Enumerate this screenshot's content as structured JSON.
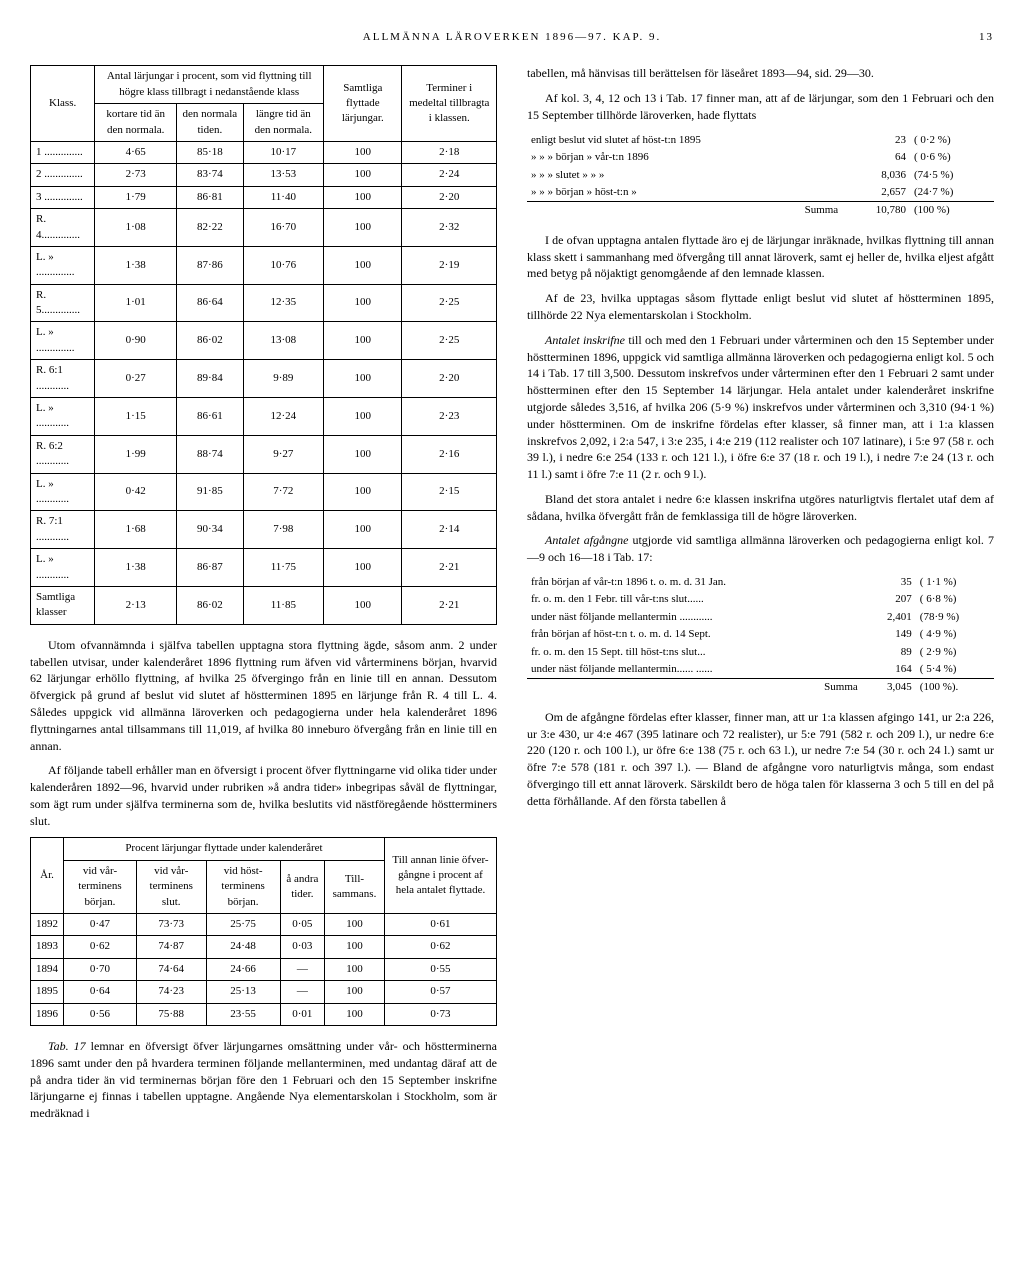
{
  "header": {
    "title": "ALLMÄNNA LÄROVERKEN 1896—97. KAP. 9.",
    "page_number": "13"
  },
  "table1": {
    "col_headers": {
      "c0": "Klass.",
      "c1_group": "Antal lärjungar i procent, som vid flyttning till högre klass tillbragt i nedanstående klass",
      "c1a": "kortare tid än den normala.",
      "c1b": "den normala tiden.",
      "c1c": "längre tid än den normala.",
      "c2": "Samtliga flyttade lärjungar.",
      "c3": "Terminer i medeltal tillbragta i klassen."
    },
    "rows": [
      {
        "k": "1 ..............",
        "a": "4·65",
        "b": "85·18",
        "c": "10·17",
        "d": "100",
        "e": "2·18"
      },
      {
        "k": "2 ..............",
        "a": "2·73",
        "b": "83·74",
        "c": "13·53",
        "d": "100",
        "e": "2·24"
      },
      {
        "k": "3 ..............",
        "a": "1·79",
        "b": "86·81",
        "c": "11·40",
        "d": "100",
        "e": "2·20"
      },
      {
        "k": "R. 4..............",
        "a": "1·08",
        "b": "82·22",
        "c": "16·70",
        "d": "100",
        "e": "2·32"
      },
      {
        "k": "L. » ..............",
        "a": "1·38",
        "b": "87·86",
        "c": "10·76",
        "d": "100",
        "e": "2·19"
      },
      {
        "k": "R. 5..............",
        "a": "1·01",
        "b": "86·64",
        "c": "12·35",
        "d": "100",
        "e": "2·25"
      },
      {
        "k": "L. » ..............",
        "a": "0·90",
        "b": "86·02",
        "c": "13·08",
        "d": "100",
        "e": "2·25"
      },
      {
        "k": "R. 6:1 ............",
        "a": "0·27",
        "b": "89·84",
        "c": "9·89",
        "d": "100",
        "e": "2·20"
      },
      {
        "k": "L. » ............",
        "a": "1·15",
        "b": "86·61",
        "c": "12·24",
        "d": "100",
        "e": "2·23"
      },
      {
        "k": "R. 6:2 ............",
        "a": "1·99",
        "b": "88·74",
        "c": "9·27",
        "d": "100",
        "e": "2·16"
      },
      {
        "k": "L. » ............",
        "a": "0·42",
        "b": "91·85",
        "c": "7·72",
        "d": "100",
        "e": "2·15"
      },
      {
        "k": "R. 7:1 ............",
        "a": "1·68",
        "b": "90·34",
        "c": "7·98",
        "d": "100",
        "e": "2·14"
      },
      {
        "k": "L. » ............",
        "a": "1·38",
        "b": "86·87",
        "c": "11·75",
        "d": "100",
        "e": "2·21"
      },
      {
        "k": "Samtliga klasser",
        "a": "2·13",
        "b": "86·02",
        "c": "11·85",
        "d": "100",
        "e": "2·21"
      }
    ]
  },
  "para1": "Utom ofvannämnda i själfva tabellen upptagna stora flyttning ägde, såsom anm. 2 under tabellen utvisar, under kalenderåret 1896 flyttning rum äfven vid vårterminens början, hvarvid 62 lärjungar erhöllo flyttning, af hvilka 25 öfvergingo från en linie till en annan. Dessutom öfvergick på grund af beslut vid slutet af höstterminen 1895 en lärjunge från R. 4 till L. 4. Således uppgick vid allmänna läroverken och pedagogierna under hela kalenderåret 1896 flyttningarnes antal tillsammans till 11,019, af hvilka 80 inneburo öfvergång från en linie till en annan.",
  "para2": "Af följande tabell erhåller man en öfversigt i procent öfver flyttningarne vid olika tider under kalenderåren 1892—96, hvarvid under rubriken »å andra tider» inbegripas såväl de flyttningar, som ägt rum under själfva terminerna som de, hvilka beslutits vid nästföregående höstterminers slut.",
  "table2": {
    "col_headers": {
      "c0": "År.",
      "c1_group": "Procent lärjungar flyttade under kalenderåret",
      "c1a": "vid vår-terminens början.",
      "c1b": "vid vår-terminens slut.",
      "c1c": "vid höst-terminens början.",
      "c1d": "å andra tider.",
      "c1e": "Till-sammans.",
      "c2": "Till annan linie öfver-gångne i procent af hela antalet flyttade."
    },
    "rows": [
      {
        "y": "1892",
        "a": "0·47",
        "b": "73·73",
        "c": "25·75",
        "d": "0·05",
        "e": "100",
        "f": "0·61"
      },
      {
        "y": "1893",
        "a": "0·62",
        "b": "74·87",
        "c": "24·48",
        "d": "0·03",
        "e": "100",
        "f": "0·62"
      },
      {
        "y": "1894",
        "a": "0·70",
        "b": "74·64",
        "c": "24·66",
        "d": "—",
        "e": "100",
        "f": "0·55"
      },
      {
        "y": "1895",
        "a": "0·64",
        "b": "74·23",
        "c": "25·13",
        "d": "—",
        "e": "100",
        "f": "0·57"
      },
      {
        "y": "1896",
        "a": "0·56",
        "b": "75·88",
        "c": "23·55",
        "d": "0·01",
        "e": "100",
        "f": "0·73"
      }
    ]
  },
  "para3": "Tab. 17 lemnar en öfversigt öfver lärjungarnes omsättning under vår- och höstterminerna 1896 samt under den på hvardera terminen följande mellanterminen, med undantag däraf att de på andra tider än vid terminernas början före den 1 Februari och den 15 September inskrifne lärjungarne ej finnas i tabellen upptagne. Angående Nya elementarskolan i Stockholm, som är medräknad i",
  "para4": "tabellen, må hänvisas till berättelsen för läseåret 1893—94, sid. 29—30.",
  "para5": "Af kol. 3, 4, 12 och 13 i Tab. 17 finner man, att af de lärjungar, som den 1 Februari och den 15 September tillhörde läroverken, hade flyttats",
  "table3": {
    "rows": [
      {
        "a": "enligt beslut vid slutet af höst-t:n 1895",
        "b": "23",
        "c": "( 0·2 %)"
      },
      {
        "a": "» » » början » vår-t:n 1896",
        "b": "64",
        "c": "( 0·6 %)"
      },
      {
        "a": "» » » slutet » » »",
        "b": "8,036",
        "c": "(74·5 %)"
      },
      {
        "a": "» » » början » höst-t:n »",
        "b": "2,657",
        "c": "(24·7 %)"
      }
    ],
    "sum": {
      "a": "Summa",
      "b": "10,780",
      "c": "(100 %)"
    }
  },
  "para6": "I de ofvan upptagna antalen flyttade äro ej de lärjungar inräknade, hvilkas flyttning till annan klass skett i sammanhang med öfvergång till annat läroverk, samt ej heller de, hvilka eljest afgått med betyg på nöjaktigt genomgående af den lemnade klassen.",
  "para7": "Af de 23, hvilka upptagas såsom flyttade enligt beslut vid slutet af höstterminen 1895, tillhörde 22 Nya elementarskolan i Stockholm.",
  "para8": "Antalet inskrifne till och med den 1 Februari under vårterminen och den 15 September under höstterminen 1896, uppgick vid samtliga allmänna läroverken och pedagogierna enligt kol. 5 och 14 i Tab. 17 till 3,500. Dessutom inskrefvos under vårterminen efter den 1 Februari 2 samt under höstterminen efter den 15 September 14 lärjungar. Hela antalet under kalenderåret inskrifne utgjorde således 3,516, af hvilka 206 (5·9 %) inskrefvos under vårterminen och 3,310 (94·1 %) under höstterminen. Om de inskrifne fördelas efter klasser, så finner man, att i 1:a klassen inskrefvos 2,092, i 2:a 547, i 3:e 235, i 4:e 219 (112 realister och 107 latinare), i 5:e 97 (58 r. och 39 l.), i nedre 6:e 254 (133 r. och 121 l.), i öfre 6:e 37 (18 r. och 19 l.), i nedre 7:e 24 (13 r. och 11 l.) samt i öfre 7:e 11 (2 r. och 9 l.).",
  "para9": "Bland det stora antalet i nedre 6:e klassen inskrifna utgöres naturligtvis flertalet utaf dem af sådana, hvilka öfvergått från de femklassiga till de högre läroverken.",
  "para10": "Antalet afgångne utgjorde vid samtliga allmänna läroverken och pedagogierna enligt kol. 7—9 och 16—18 i Tab. 17:",
  "table4": {
    "rows": [
      {
        "a": "från början af vår-t:n 1896 t. o. m. d. 31 Jan.",
        "b": "35",
        "c": "( 1·1 %)"
      },
      {
        "a": "fr. o. m. den 1 Febr. till vår-t:ns slut......",
        "b": "207",
        "c": "( 6·8 %)"
      },
      {
        "a": "under näst följande mellantermin ............",
        "b": "2,401",
        "c": "(78·9 %)"
      },
      {
        "a": "från början af höst-t:n t. o. m. d. 14 Sept.",
        "b": "149",
        "c": "( 4·9 %)"
      },
      {
        "a": "fr. o. m. den 15 Sept. till höst-t:ns slut...",
        "b": "89",
        "c": "( 2·9 %)"
      },
      {
        "a": "under näst följande mellantermin...... ......",
        "b": "164",
        "c": "( 5·4 %)"
      }
    ],
    "sum": {
      "a": "Summa",
      "b": "3,045",
      "c": "(100 %)."
    }
  },
  "para11": "Om de afgångne fördelas efter klasser, finner man, att ur 1:a klassen afgingo 141, ur 2:a 226, ur 3:e 430, ur 4:e 467 (395 latinare och 72 realister), ur 5:e 791 (582 r. och 209 l.), ur nedre 6:e 220 (120 r. och 100 l.), ur öfre 6:e 138 (75 r. och 63 l.), ur nedre 7:e 54 (30 r. och 24 l.) samt ur öfre 7:e 578 (181 r. och 397 l.). — Bland de afgångne voro naturligtvis många, som endast öfvergingo till ett annat läroverk. Särskildt bero de höga talen för klasserna 3 och 5 till en del på detta förhållande. Af den första tabellen å"
}
